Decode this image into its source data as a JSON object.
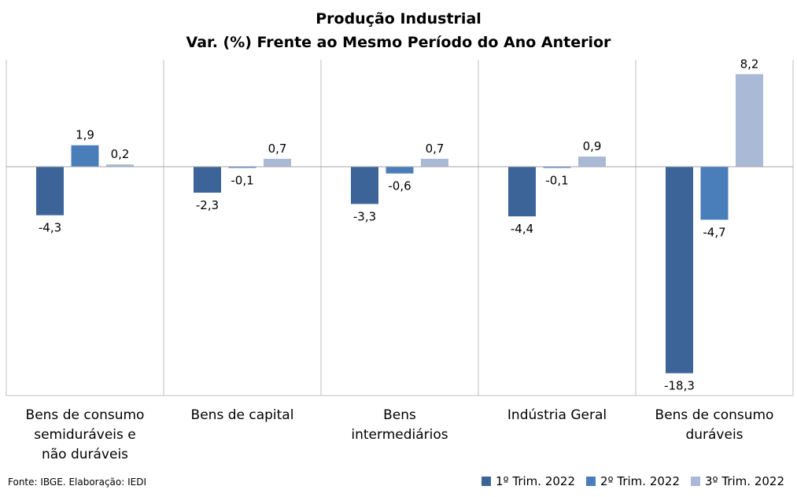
{
  "chart_data": {
    "type": "bar",
    "title": "Produção Industrial",
    "subtitle": "Var. (%)  Frente ao Mesmo Período do Ano Anterior",
    "categories": [
      "Bens de consumo semiduráveis e não duráveis",
      "Bens de capital",
      "Bens intermediários",
      "Indústria Geral",
      "Bens de consumo duráveis"
    ],
    "series": [
      {
        "name": "1º Trim. 2022",
        "values": [
          -4.3,
          -2.3,
          -3.3,
          -4.4,
          -18.3
        ],
        "labels": [
          "-4,3",
          "-2,3",
          "-3,3",
          "-4,4",
          "-18,3"
        ],
        "color": "#3c6499"
      },
      {
        "name": "2º Trim. 2022",
        "values": [
          1.9,
          -0.1,
          -0.6,
          -0.1,
          -4.7
        ],
        "labels": [
          "1,9",
          "-0,1",
          "-0,6",
          "-0,1",
          "-4,7"
        ],
        "color": "#4a7ebb"
      },
      {
        "name": "3º Trim. 2022",
        "values": [
          0.2,
          0.7,
          0.7,
          0.9,
          8.2
        ],
        "labels": [
          "0,2",
          "0,7",
          "0,7",
          "0,9",
          "8,2"
        ],
        "color": "#a9b9d6"
      }
    ],
    "grid": false,
    "legend_position": "bottom-right"
  },
  "source": "Fonte: IBGE. Elaboração: IEDI"
}
